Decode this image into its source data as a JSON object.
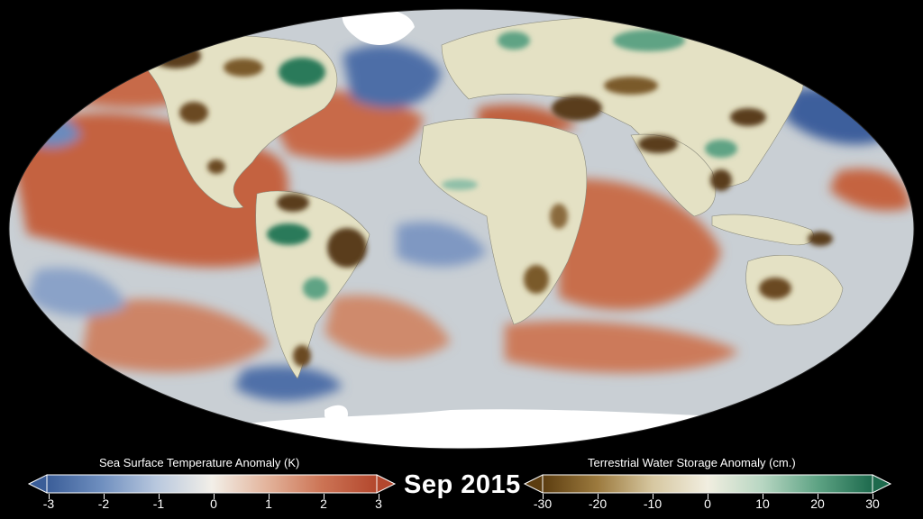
{
  "date": "Sep 2015",
  "sst_legend": {
    "title": "Sea Surface Temperature Anomaly (K)",
    "ticks": [
      "-3",
      "-2",
      "-1",
      "0",
      "1",
      "2",
      "3"
    ],
    "colors": [
      "#3a5d98",
      "#6f8fbf",
      "#b9c8de",
      "#f2efe8",
      "#e3b49c",
      "#cc7455",
      "#b3472d"
    ]
  },
  "tws_legend": {
    "title": "Terrestrial Water Storage Anomaly (cm.)",
    "ticks": [
      "-30",
      "-20",
      "-10",
      "0",
      "10",
      "20",
      "30"
    ],
    "colors": [
      "#5c3d10",
      "#9c7a3e",
      "#d6c7a0",
      "#f1eee0",
      "#b7d6c2",
      "#5ea384",
      "#1d6a4d"
    ]
  },
  "palette": {
    "warm_sst": "#c4623f",
    "cool_sst": "#4d6ea7",
    "neutral_sst": "#d4d6d6",
    "land": "#e6e4c8",
    "ice": "#ffffff",
    "dry_land": "#5a3e1c",
    "wet_land": "#2c7a5a"
  }
}
